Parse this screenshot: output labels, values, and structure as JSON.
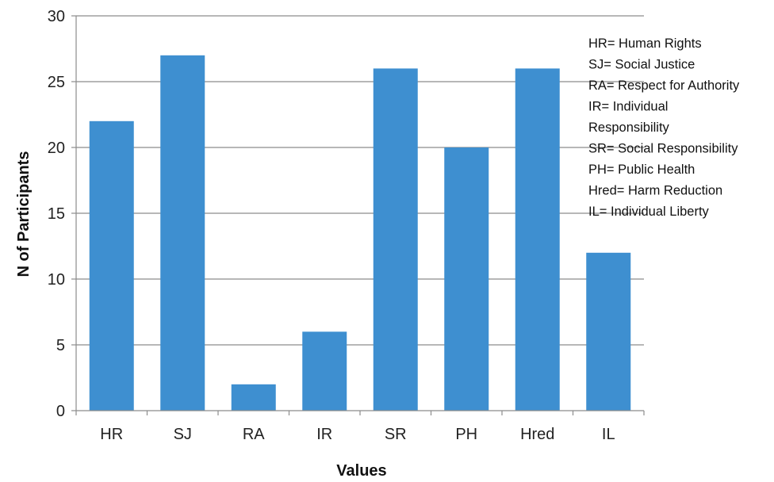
{
  "chart_data": {
    "type": "bar",
    "categories": [
      "HR",
      "SJ",
      "RA",
      "IR",
      "SR",
      "PH",
      "Hred",
      "IL"
    ],
    "values": [
      22,
      27,
      2,
      6,
      26,
      20,
      26,
      12
    ],
    "xlabel": "Values",
    "ylabel": "N of Participants",
    "ylim": [
      0,
      30
    ],
    "yticks": [
      0,
      5,
      10,
      15,
      20,
      25,
      30
    ],
    "grid": true,
    "bar_color": "#3e8fd0",
    "legend_placement": "top-right",
    "legend_lines": [
      "HR= Human Rights",
      "SJ= Social Justice",
      "RA= Respect for Authority",
      "IR= Individual",
      "Responsibility",
      "SR= Social Responsibility",
      "PH= Public Health",
      "Hred= Harm Reduction",
      "IL= Individual Liberty"
    ]
  }
}
